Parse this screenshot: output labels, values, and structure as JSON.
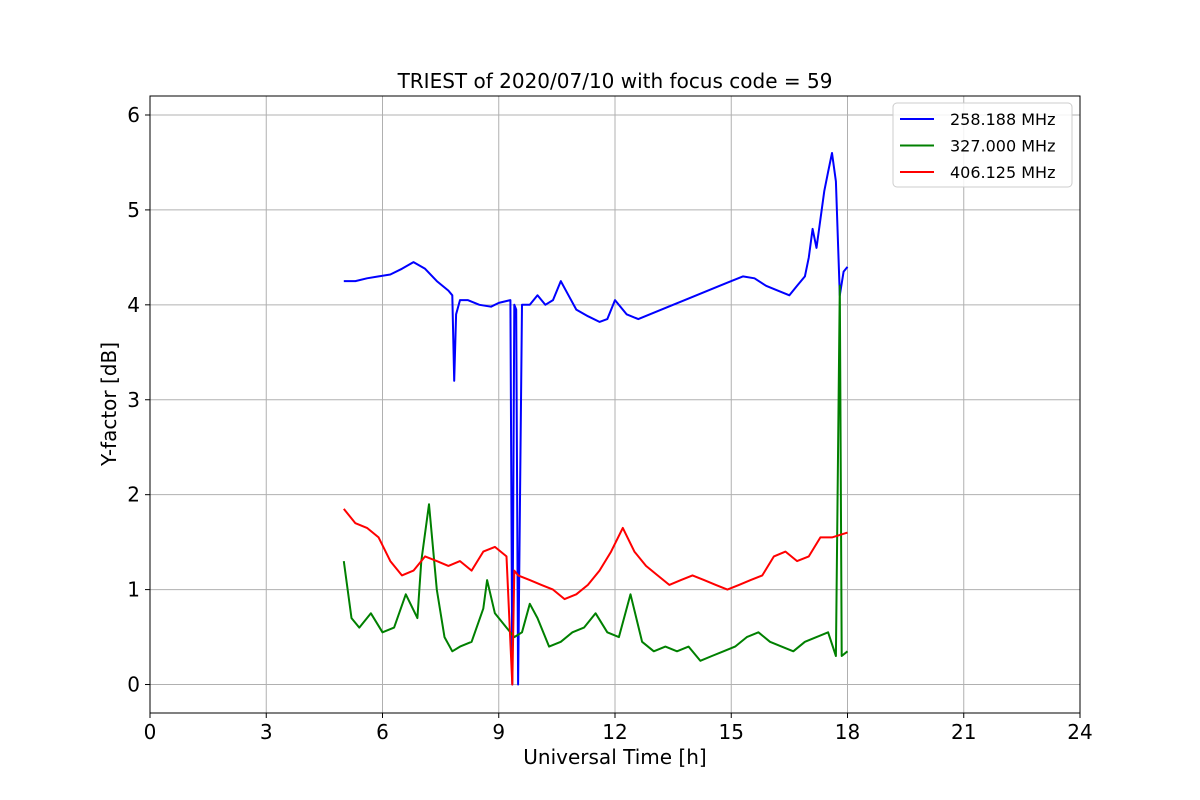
{
  "chart_data": {
    "type": "line",
    "title": "TRIEST of 2020/07/10 with focus code = 59",
    "xlabel": "Universal Time [h]",
    "ylabel": "Y-factor [dB]",
    "xlim": [
      0,
      24
    ],
    "ylim": [
      -0.3,
      6.2
    ],
    "xticks": [
      0,
      3,
      6,
      9,
      12,
      15,
      18,
      21,
      24
    ],
    "yticks": [
      0,
      1,
      2,
      3,
      4,
      5,
      6
    ],
    "grid": true,
    "legend_position": "top-right",
    "series": [
      {
        "name": "258.188 MHz",
        "color": "#0000ff",
        "x": [
          5.0,
          5.3,
          5.6,
          5.9,
          6.2,
          6.5,
          6.8,
          7.1,
          7.4,
          7.7,
          7.8,
          7.85,
          7.9,
          8.0,
          8.2,
          8.5,
          8.8,
          9.0,
          9.3,
          9.35,
          9.4,
          9.45,
          9.5,
          9.6,
          9.8,
          10.0,
          10.2,
          10.4,
          10.6,
          10.8,
          11.0,
          11.3,
          11.6,
          11.8,
          12.0,
          12.3,
          12.6,
          12.9,
          13.2,
          13.5,
          13.8,
          14.1,
          14.4,
          14.7,
          15.0,
          15.3,
          15.6,
          15.9,
          16.2,
          16.5,
          16.7,
          16.9,
          17.0,
          17.1,
          17.2,
          17.3,
          17.4,
          17.5,
          17.6,
          17.7,
          17.8,
          17.9,
          18.0
        ],
        "y": [
          4.25,
          4.25,
          4.28,
          4.3,
          4.32,
          4.38,
          4.45,
          4.38,
          4.25,
          4.15,
          4.1,
          3.2,
          3.9,
          4.05,
          4.05,
          4.0,
          3.98,
          4.02,
          4.05,
          0.0,
          4.0,
          3.95,
          0.0,
          4.0,
          4.0,
          4.1,
          4.0,
          4.05,
          4.25,
          4.1,
          3.95,
          3.88,
          3.82,
          3.85,
          4.05,
          3.9,
          3.85,
          3.9,
          3.95,
          4.0,
          4.05,
          4.1,
          4.15,
          4.2,
          4.25,
          4.3,
          4.28,
          4.2,
          4.15,
          4.1,
          4.2,
          4.3,
          4.5,
          4.8,
          4.6,
          4.9,
          5.2,
          5.4,
          5.6,
          5.3,
          4.1,
          4.35,
          4.4
        ]
      },
      {
        "name": "327.000 MHz",
        "color": "#008000",
        "x": [
          5.0,
          5.2,
          5.4,
          5.7,
          6.0,
          6.3,
          6.6,
          6.9,
          7.0,
          7.2,
          7.4,
          7.6,
          7.8,
          8.0,
          8.3,
          8.6,
          8.7,
          8.9,
          9.2,
          9.4,
          9.6,
          9.8,
          10.0,
          10.3,
          10.6,
          10.9,
          11.2,
          11.5,
          11.8,
          12.1,
          12.4,
          12.7,
          13.0,
          13.3,
          13.6,
          13.9,
          14.2,
          14.5,
          14.8,
          15.1,
          15.4,
          15.7,
          16.0,
          16.3,
          16.6,
          16.9,
          17.2,
          17.5,
          17.7,
          17.8,
          17.85,
          18.0
        ],
        "y": [
          1.3,
          0.7,
          0.6,
          0.75,
          0.55,
          0.6,
          0.95,
          0.7,
          1.3,
          1.9,
          1.0,
          0.5,
          0.35,
          0.4,
          0.45,
          0.8,
          1.1,
          0.75,
          0.6,
          0.5,
          0.55,
          0.85,
          0.7,
          0.4,
          0.45,
          0.55,
          0.6,
          0.75,
          0.55,
          0.5,
          0.95,
          0.45,
          0.35,
          0.4,
          0.35,
          0.4,
          0.25,
          0.3,
          0.35,
          0.4,
          0.5,
          0.55,
          0.45,
          0.4,
          0.35,
          0.45,
          0.5,
          0.55,
          0.3,
          4.2,
          0.3,
          0.35
        ]
      },
      {
        "name": "406.125 MHz",
        "color": "#ff0000",
        "x": [
          5.0,
          5.3,
          5.6,
          5.9,
          6.2,
          6.5,
          6.8,
          7.1,
          7.4,
          7.7,
          8.0,
          8.3,
          8.6,
          8.9,
          9.2,
          9.35,
          9.4,
          9.5,
          9.8,
          10.1,
          10.4,
          10.7,
          11.0,
          11.3,
          11.6,
          11.9,
          12.2,
          12.5,
          12.8,
          13.1,
          13.4,
          13.7,
          14.0,
          14.3,
          14.6,
          14.9,
          15.2,
          15.5,
          15.8,
          16.1,
          16.4,
          16.7,
          17.0,
          17.3,
          17.6,
          18.0
        ],
        "y": [
          1.85,
          1.7,
          1.65,
          1.55,
          1.3,
          1.15,
          1.2,
          1.35,
          1.3,
          1.25,
          1.3,
          1.2,
          1.4,
          1.45,
          1.35,
          0.0,
          1.2,
          1.15,
          1.1,
          1.05,
          1.0,
          0.9,
          0.95,
          1.05,
          1.2,
          1.4,
          1.65,
          1.4,
          1.25,
          1.15,
          1.05,
          1.1,
          1.15,
          1.1,
          1.05,
          1.0,
          1.05,
          1.1,
          1.15,
          1.35,
          1.4,
          1.3,
          1.35,
          1.55,
          1.55,
          1.6
        ]
      }
    ]
  }
}
